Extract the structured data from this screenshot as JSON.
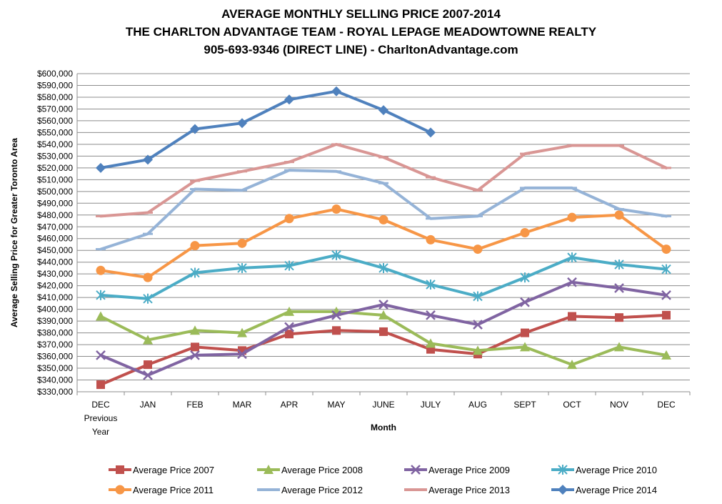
{
  "chart_data": {
    "type": "line",
    "title": [
      "AVERAGE MONTHLY SELLING PRICE 2007-2014",
      "THE CHARLTON ADVANTAGE TEAM - ROYAL LEPAGE MEADOWTOWNE REALTY",
      "905-693-9346 (DIRECT LINE)  -  CharltonAdvantage.com"
    ],
    "xlabel": "Month",
    "ylabel": "Average Selling Price for Greater Toronto Area",
    "ylim": [
      330000,
      600000
    ],
    "ytick_step": 10000,
    "ytick_labels": [
      "$330,000",
      "$340,000",
      "$350,000",
      "$360,000",
      "$370,000",
      "$380,000",
      "$390,000",
      "$400,000",
      "$410,000",
      "$420,000",
      "$430,000",
      "$440,000",
      "$450,000",
      "$460,000",
      "$470,000",
      "$480,000",
      "$490,000",
      "$500,000",
      "$510,000",
      "$520,000",
      "$530,000",
      "$540,000",
      "$550,000",
      "$560,000",
      "$570,000",
      "$580,000",
      "$590,000",
      "$600,000"
    ],
    "categories": [
      [
        "DEC",
        "Previous",
        "Year"
      ],
      [
        "JAN"
      ],
      [
        "FEB"
      ],
      [
        "MAR"
      ],
      [
        "APR"
      ],
      [
        "MAY"
      ],
      [
        "JUNE"
      ],
      [
        "JULY"
      ],
      [
        "AUG"
      ],
      [
        "SEPT"
      ],
      [
        "OCT"
      ],
      [
        "NOV"
      ],
      [
        "DEC"
      ]
    ],
    "grid": "horizontal",
    "legend_position": "bottom",
    "series": [
      {
        "name": "Average Price 2007",
        "color": "#c0504d",
        "marker": "square",
        "values": [
          336000,
          353000,
          368000,
          365000,
          379000,
          382000,
          381000,
          366000,
          362000,
          380000,
          394000,
          393000,
          395000
        ]
      },
      {
        "name": "Average Price 2008",
        "color": "#9bbb59",
        "marker": "triangle",
        "values": [
          394000,
          374000,
          382000,
          380000,
          398000,
          398000,
          395000,
          371000,
          365000,
          368000,
          353000,
          368000,
          361000
        ]
      },
      {
        "name": "Average Price 2009",
        "color": "#8064a2",
        "marker": "x",
        "values": [
          361000,
          344000,
          361000,
          362000,
          385000,
          395000,
          404000,
          395000,
          387000,
          406000,
          423000,
          418000,
          412000
        ]
      },
      {
        "name": "Average Price 2010",
        "color": "#4bacc6",
        "marker": "star",
        "values": [
          412000,
          409000,
          431000,
          435000,
          437000,
          446000,
          435000,
          421000,
          411000,
          427000,
          444000,
          438000,
          434000
        ]
      },
      {
        "name": "Average Price 2011",
        "color": "#f79646",
        "marker": "circle",
        "values": [
          433000,
          427000,
          454000,
          456000,
          477000,
          485000,
          476000,
          459000,
          451000,
          465000,
          478000,
          480000,
          451000
        ]
      },
      {
        "name": "Average Price 2012",
        "color": "#95b3d7",
        "marker": "dash",
        "values": [
          451000,
          464000,
          502000,
          501000,
          518000,
          517000,
          507000,
          477000,
          479000,
          503000,
          503000,
          485000,
          479000
        ]
      },
      {
        "name": "Average Price 2013",
        "color": "#d99694",
        "marker": "dash",
        "values": [
          479000,
          482000,
          509000,
          517000,
          525000,
          540000,
          529000,
          512000,
          501000,
          532000,
          539000,
          539000,
          520000
        ]
      },
      {
        "name": "Average Price 2014",
        "color": "#4f81bd",
        "marker": "diamond",
        "values": [
          520000,
          527000,
          553000,
          558000,
          578000,
          585000,
          569000,
          550000,
          null,
          null,
          null,
          null,
          null
        ]
      }
    ]
  }
}
